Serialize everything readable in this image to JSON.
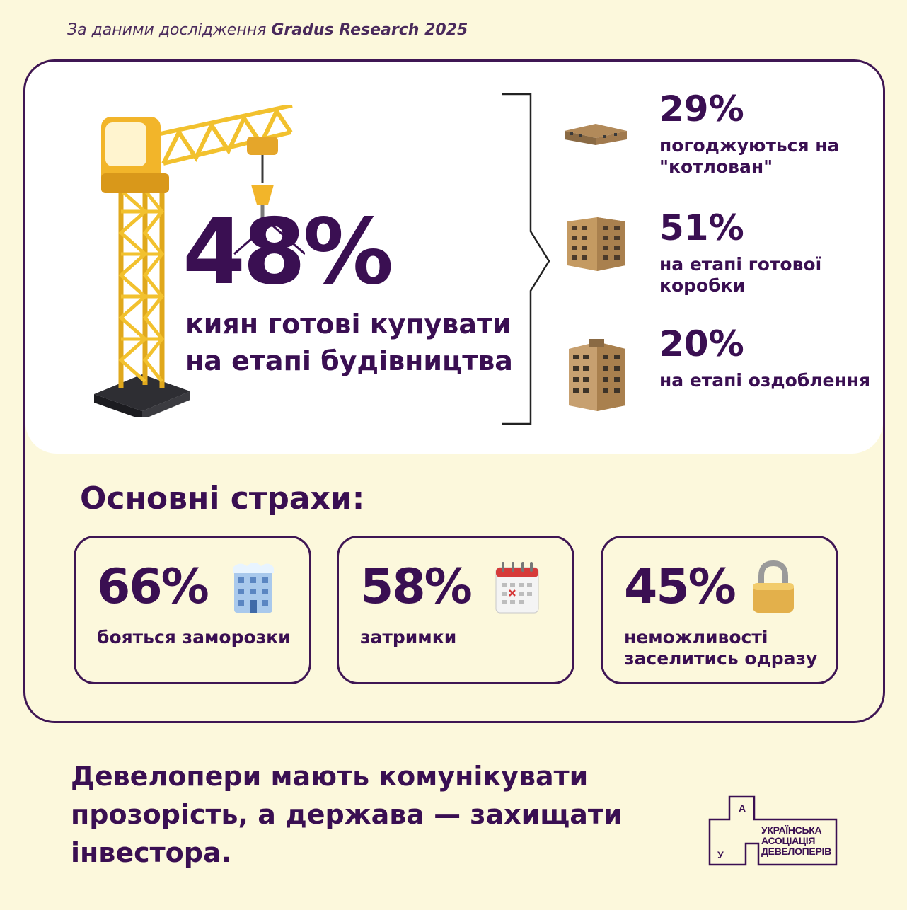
{
  "source": {
    "prefix": "За даними дослідження",
    "name": "Gradus Research 2025"
  },
  "hero": {
    "percent": "48%",
    "text": "киян готові купувати на етапі будівництва",
    "crane_icon": "tower-crane-icon"
  },
  "stages": [
    {
      "percent": "29%",
      "label": "погоджуються на \"котлован\"",
      "icon": "foundation-building-icon"
    },
    {
      "percent": "51%",
      "label": "на етапі готової коробки",
      "icon": "building-shell-icon"
    },
    {
      "percent": "20%",
      "label": "на етапі оздоблення",
      "icon": "finished-building-icon"
    }
  ],
  "fears": {
    "title": "Основні страхи:",
    "items": [
      {
        "percent": "66%",
        "label": "бояться заморозки",
        "icon": "frozen-building-icon"
      },
      {
        "percent": "58%",
        "label": "затримки",
        "icon": "calendar-icon"
      },
      {
        "percent": "45%",
        "label": "неможливості заселитись одразу",
        "icon": "padlock-icon"
      }
    ]
  },
  "closing": "Девелопери мають комунікувати прозорість, а держава — захищати інвестора.",
  "logo": {
    "letter_top": "А",
    "letter_bottom": "У",
    "line1": "УКРАЇНСЬКА",
    "line2": "АСОЦІАЦІЯ",
    "line3": "ДЕВЕЛОПЕРІВ"
  },
  "colors": {
    "background": "#fcf8dc",
    "accent": "#3a0f52",
    "panel": "#ffffff",
    "crane_yellow": "#f2c12e"
  }
}
